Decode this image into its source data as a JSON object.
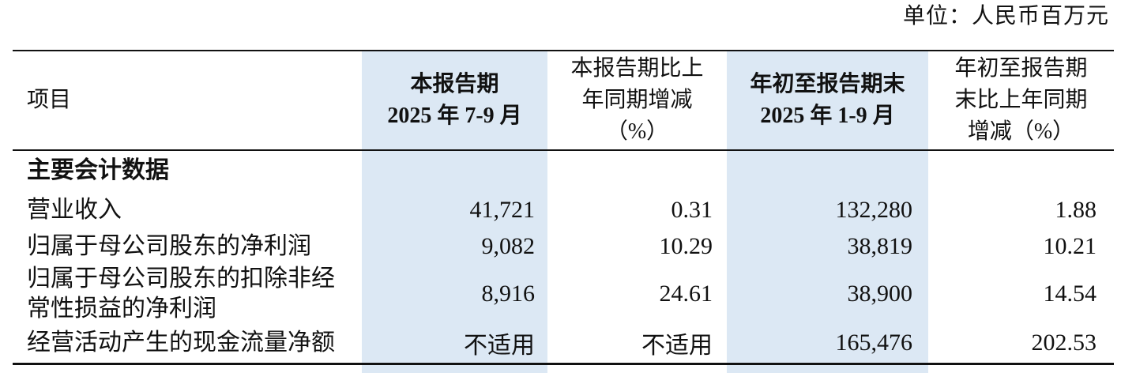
{
  "meta": {
    "unit_label": "单位：人民币百万元"
  },
  "colors": {
    "highlight_column": "#dce8f4",
    "rule": "#111111",
    "text": "#111111"
  },
  "table": {
    "columns": [
      {
        "key": "item",
        "label": "项目"
      },
      {
        "key": "current_period",
        "label_lines": [
          "本报告期",
          "2025 年 7-9 月"
        ],
        "highlight": true,
        "bold": true
      },
      {
        "key": "current_period_yoy",
        "label_lines": [
          "本报告期比上",
          "年同期增减",
          "（%）"
        ],
        "highlight": false,
        "bold": false
      },
      {
        "key": "year_to_date",
        "label_lines": [
          "年初至报告期末",
          "2025 年 1-9 月"
        ],
        "highlight": true,
        "bold": true
      },
      {
        "key": "year_to_date_yoy",
        "label_lines": [
          "年初至报告期",
          "末比上年同期",
          "增减（%）"
        ],
        "highlight": false,
        "bold": false
      }
    ],
    "rows": [
      {
        "item": "主要会计数据",
        "is_section": true,
        "values": [
          "",
          "",
          "",
          ""
        ]
      },
      {
        "item": "营业收入",
        "is_section": false,
        "values": [
          "41,721",
          "0.31",
          "132,280",
          "1.88"
        ]
      },
      {
        "item": "归属于母公司股东的净利润",
        "is_section": false,
        "values": [
          "9,082",
          "10.29",
          "38,819",
          "10.21"
        ]
      },
      {
        "item": "归属于母公司股东的扣除非经常性损益的净利润",
        "is_section": false,
        "values": [
          "8,916",
          "24.61",
          "38,900",
          "14.54"
        ]
      },
      {
        "item": "经营活动产生的现金流量净额",
        "is_section": false,
        "values": [
          "不适用",
          "不适用",
          "165,476",
          "202.53"
        ]
      }
    ]
  }
}
